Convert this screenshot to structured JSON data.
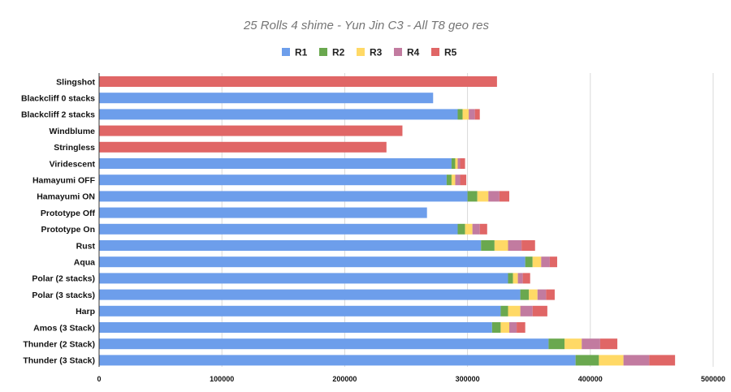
{
  "chart_data": {
    "type": "bar",
    "orientation": "horizontal",
    "stacked": true,
    "title": "25 Rolls 4 shime - Yun Jin C3 - All T8 geo res",
    "xlabel": "",
    "ylabel": "",
    "xlim": [
      0,
      500000
    ],
    "xticks": [
      0,
      100000,
      200000,
      300000,
      400000,
      500000
    ],
    "grid": true,
    "legend_position": "top",
    "categories": [
      "Slingshot",
      "Blackcliff 0 stacks",
      "Blackcliff 2 stacks",
      "Windblume",
      "Stringless",
      "Viridescent",
      "Hamayumi OFF",
      "Hamayumi ON",
      "Prototype Off",
      "Prototype On",
      "Rust",
      "Aqua",
      "Polar (2 stacks)",
      "Polar (3 stacks)",
      "Harp",
      "Amos (3 Stack)",
      "Thunder (2 Stack)",
      "Thunder (3 Stack)"
    ],
    "series": [
      {
        "name": "R1",
        "color": "#6d9eeb",
        "values": [
          0,
          272000,
          292000,
          0,
          0,
          287000,
          283000,
          300000,
          267000,
          292000,
          311000,
          347000,
          333000,
          343000,
          327000,
          320000,
          366000,
          388000
        ]
      },
      {
        "name": "R2",
        "color": "#6aa84f",
        "values": [
          0,
          0,
          4000,
          0,
          0,
          3000,
          4000,
          8000,
          0,
          6000,
          11000,
          6000,
          4000,
          7000,
          6000,
          7000,
          13000,
          19000
        ]
      },
      {
        "name": "R3",
        "color": "#ffd966",
        "values": [
          0,
          0,
          5000,
          0,
          0,
          2000,
          3000,
          9000,
          0,
          6000,
          11000,
          7000,
          4000,
          7000,
          10000,
          7000,
          14000,
          20000
        ]
      },
      {
        "name": "R4",
        "color": "#c27ba0",
        "values": [
          0,
          0,
          5000,
          0,
          0,
          2000,
          4000,
          9000,
          0,
          6000,
          11000,
          7000,
          4000,
          7000,
          10000,
          6000,
          15000,
          21000
        ]
      },
      {
        "name": "R5",
        "color": "#e06666",
        "values": [
          324000,
          0,
          4000,
          247000,
          234000,
          4000,
          5000,
          8000,
          0,
          6000,
          11000,
          6000,
          6000,
          7000,
          12000,
          7000,
          14000,
          21000
        ]
      }
    ]
  }
}
